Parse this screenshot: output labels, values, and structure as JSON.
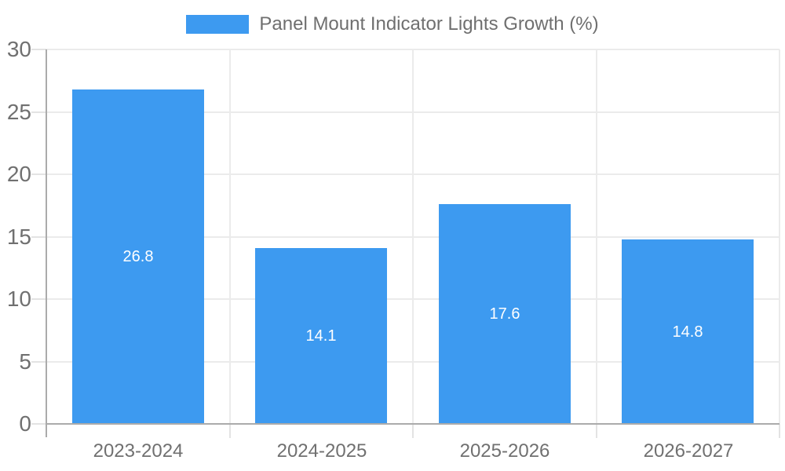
{
  "legend": {
    "label": "Panel Mount Indicator Lights Growth (%)"
  },
  "chart_data": {
    "type": "bar",
    "title": "Panel Mount Indicator Lights Growth (%)",
    "categories": [
      "2023-2024",
      "2024-2025",
      "2025-2026",
      "2026-2027"
    ],
    "values": [
      26.8,
      14.1,
      17.6,
      14.8
    ],
    "value_labels": [
      "26.8",
      "14.1",
      "17.6",
      "14.8"
    ],
    "xlabel": "",
    "ylabel": "",
    "ylim": [
      0,
      30
    ],
    "yticks": [
      0,
      5,
      10,
      15,
      20,
      25,
      30
    ],
    "grid": true,
    "legend_position": "top-center",
    "colors": {
      "bar": "#3D9AF0",
      "value_label": "#FFFFFF",
      "axis_line": "#ABABAB",
      "gridline": "#EBEBEB",
      "tick_dash": "#E3E3E3",
      "tick_label": "#707070",
      "legend_text": "#6F6F6F",
      "background": "#FFFFFF"
    }
  }
}
